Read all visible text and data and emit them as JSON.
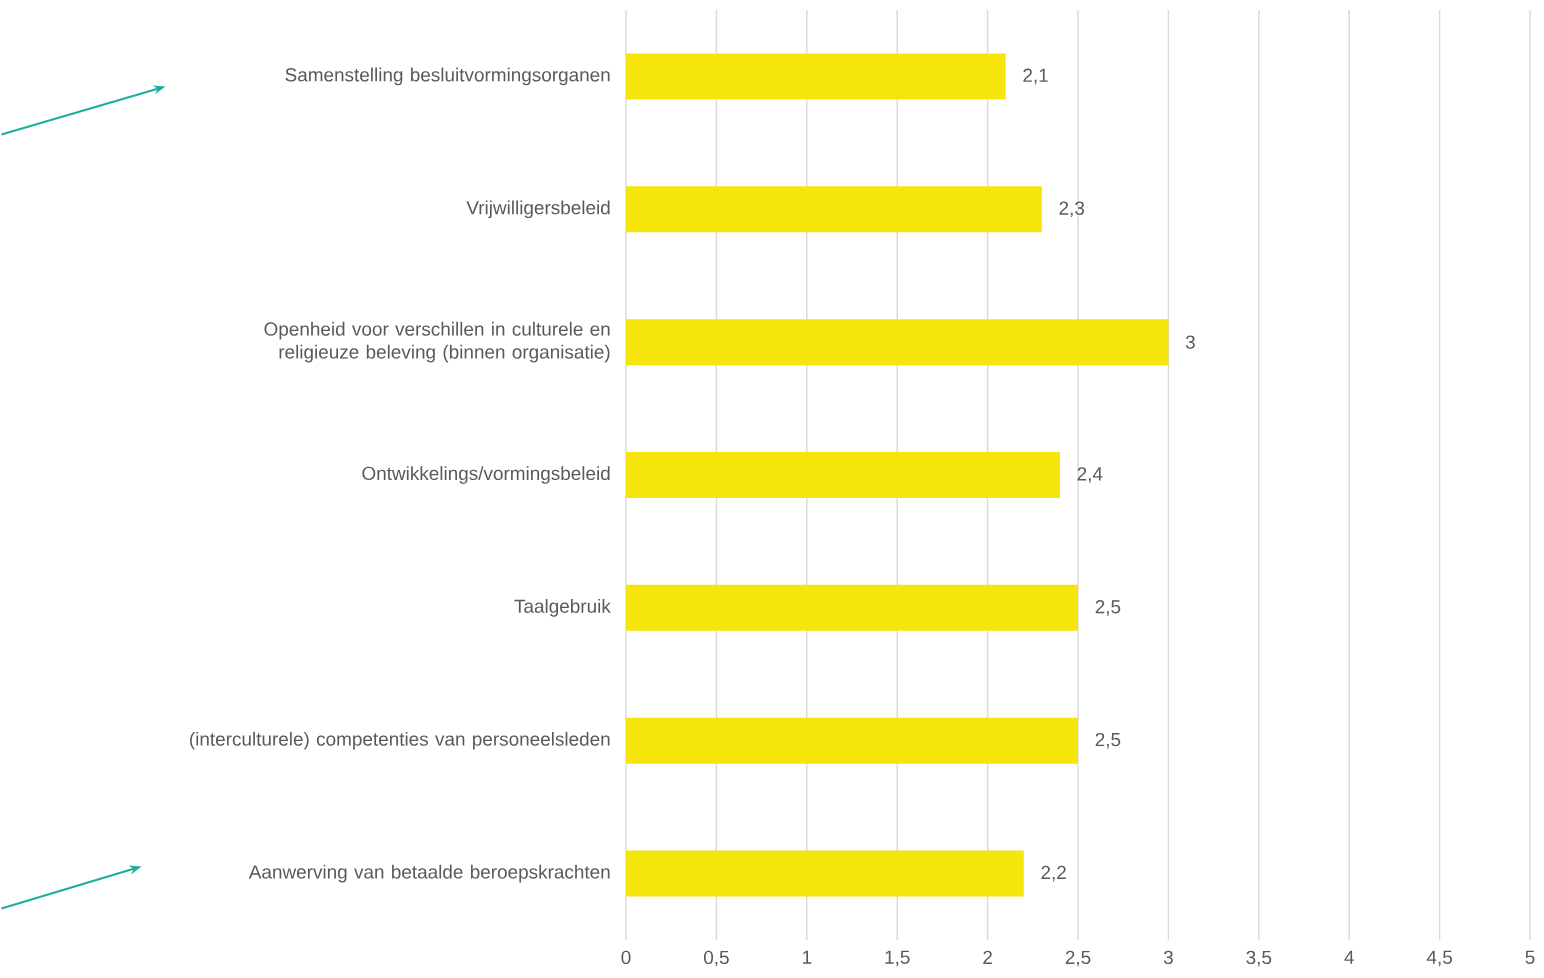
{
  "chart_data": {
    "type": "bar",
    "orientation": "horizontal",
    "categories": [
      "Samenstelling besluitvormingsorganen",
      "Vrijwilligersbeleid",
      "Openheid voor verschillen in culturele en religieuze beleving (binnen organisatie)",
      "Ontwikkelings/vormingsbeleid",
      "Taalgebruik",
      "(interculturele) competenties van personeelsleden",
      "Aanwerving van betaalde beroepskrachten"
    ],
    "values": [
      2.1,
      2.3,
      3,
      2.4,
      2.5,
      2.5,
      2.2
    ],
    "value_labels": [
      "2,1",
      "2,3",
      "3",
      "2,4",
      "2,5",
      "2,5",
      "2,2"
    ],
    "color": "#f5e50a",
    "xlim": [
      0,
      5
    ],
    "xticks": [
      0,
      {
        "value": 0.5,
        "label": "0,5"
      },
      1,
      {
        "value": 1.5,
        "label": "1,5"
      },
      2,
      {
        "value": 2.5,
        "label": "2,5"
      },
      3,
      {
        "value": 3.5,
        "label": "3,5"
      },
      4,
      {
        "value": 4.5,
        "label": "4,5"
      },
      5
    ],
    "grid": "x"
  }
}
